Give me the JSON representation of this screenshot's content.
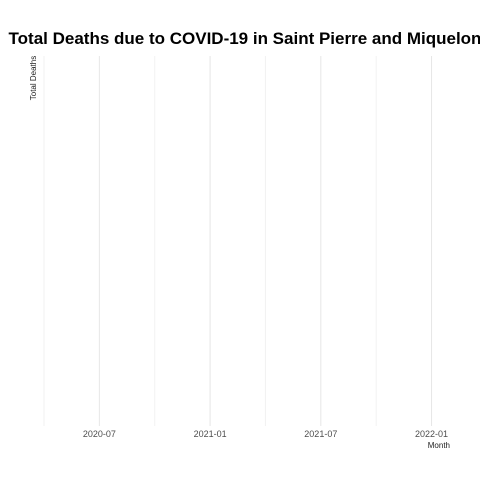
{
  "chart_data": {
    "type": "line",
    "title": "Total Deaths due to COVID-19 in Saint Pierre and Miquelon",
    "xlabel": "Month",
    "ylabel": "Total Deaths",
    "x_ticks": [
      "2020-07",
      "2021-01",
      "2021-07",
      "2022-01"
    ],
    "x_range": [
      "2020-04",
      "2022-02"
    ],
    "series": [],
    "grid": true,
    "legend": "none"
  }
}
